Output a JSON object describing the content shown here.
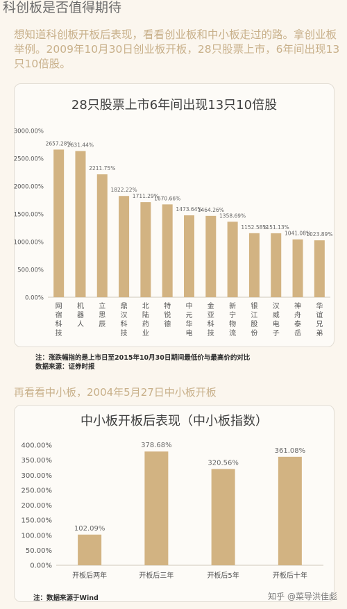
{
  "page": {
    "heading": "科创板是否值得期待",
    "intro": "想知道科创板开板后表现，看看创业板和中小板走过的路。拿创业板举例。2009年10月30日创业板开板，28只股票上市，6年间出现13只10倍股。",
    "section2_heading": "再看看中小板，2004年5月27日中小板开板",
    "watermark": "知乎 @菜导洪佳彪",
    "colors": {
      "bar": "#d2b382",
      "accent_text": "#c8b08a",
      "background": "#fbf6ee"
    }
  },
  "chart_data": [
    {
      "type": "bar",
      "title": "28只股票上市6年间出现13只10倍股",
      "categories": [
        "网宿科技",
        "机器人",
        "立思辰",
        "鼎汉科技",
        "北陆药业",
        "特锐德",
        "中元华电",
        "金亚科技",
        "新宁物流",
        "银江股份",
        "汉威电子",
        "神舟泰岳",
        "华谊兄弟"
      ],
      "values": [
        2657.28,
        2631.44,
        2211.75,
        1822.22,
        1711.29,
        1670.66,
        1473.64,
        1464.26,
        1358.69,
        1152.58,
        1151.13,
        1041.08,
        1023.89
      ],
      "data_labels": [
        "2657.28%",
        "2631.44%",
        "2211.75%",
        "1822.22%",
        "1711.29%",
        "1670.66%",
        "1473.64%",
        "1464.26%",
        "1358.69%",
        "1152.58%",
        "1151.13%",
        "1041.08%",
        "1023.89%"
      ],
      "ylim": [
        0,
        3000
      ],
      "yticks": [
        0,
        500,
        1000,
        1500,
        2000,
        2500,
        3000
      ],
      "ytick_labels": [
        "0.00%",
        "500.00%",
        "1000.00%",
        "1500.00%",
        "2000.00%",
        "2500.00%",
        "3000.00%"
      ],
      "grid": false,
      "notes": [
        "注：涨跌幅指的是上市日至2015年10月30日期间最低价与最高价的对比",
        "数据来源：证券时报"
      ]
    },
    {
      "type": "bar",
      "title": "中小板开板后表现（中小板指数）",
      "categories": [
        "开板后两年",
        "开板后三年",
        "开板后5年",
        "开板后十年"
      ],
      "values": [
        102.09,
        378.68,
        320.56,
        361.08
      ],
      "data_labels": [
        "102.09%",
        "378.68%",
        "320.56%",
        "361.08%"
      ],
      "ylim": [
        0,
        400
      ],
      "yticks": [
        0,
        50,
        100,
        150,
        200,
        250,
        300,
        350,
        400
      ],
      "ytick_labels": [
        "0.00%",
        "50.00%",
        "100.00%",
        "150.00%",
        "200.00%",
        "250.00%",
        "300.00%",
        "350.00%",
        "400.00%"
      ],
      "grid": false,
      "notes": [
        "注：数据来源于Wind"
      ]
    }
  ]
}
